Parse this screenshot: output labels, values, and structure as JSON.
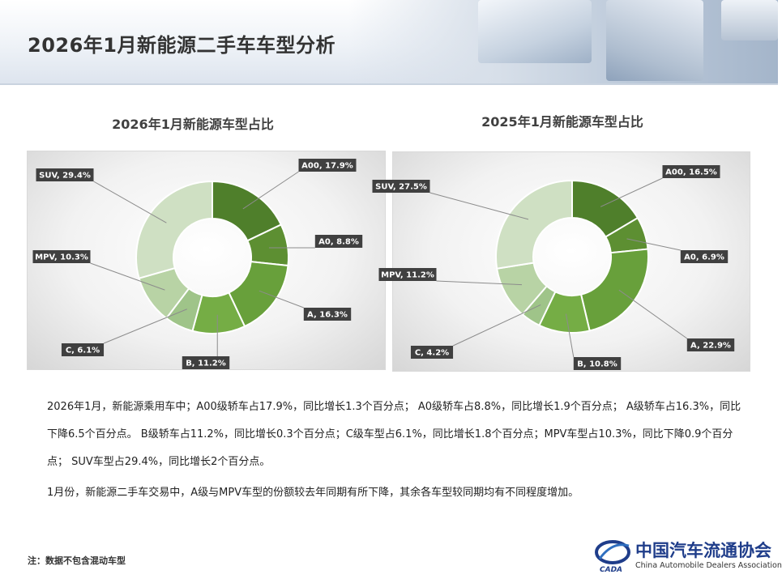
{
  "page_title": "2026年1月新能源二手车车型分析",
  "colors": {
    "A00": "#4f7f2b",
    "A0": "#5d8f32",
    "A": "#68a03b",
    "B": "#75ad45",
    "C": "#9fc489",
    "MPV": "#b8d3a5",
    "SUV": "#cfe0c3",
    "label_bg": "#404040"
  },
  "chart_data": [
    {
      "type": "pie",
      "donut": true,
      "title": "2026年1月新能源车型占比",
      "categories": [
        "A00",
        "A0",
        "A",
        "B",
        "C",
        "MPV",
        "SUV"
      ],
      "values": [
        17.9,
        8.8,
        16.3,
        11.2,
        6.1,
        10.3,
        29.4
      ],
      "labels": [
        "A00, 17.9%",
        "A0, 8.8%",
        "A, 16.3%",
        "B, 11.2%",
        "C, 6.1%",
        "MPV, 10.3%",
        "SUV, 29.4%"
      ]
    },
    {
      "type": "pie",
      "donut": true,
      "title": "2025年1月新能源车型占比",
      "categories": [
        "A00",
        "A0",
        "A",
        "B",
        "C",
        "MPV",
        "SUV"
      ],
      "values": [
        16.5,
        6.9,
        22.9,
        10.8,
        4.2,
        11.2,
        27.5
      ],
      "labels": [
        "A00, 16.5%",
        "A0, 6.9%",
        "A, 22.9%",
        "B, 10.8%",
        "C, 4.2%",
        "MPV, 11.2%",
        "SUV, 27.5%"
      ]
    }
  ],
  "description": {
    "paragraph1": "2026年1月，新能源乘用车中；A00级轿车占17.9%，同比增长1.3个百分点； A0级轿车占8.8%，同比增长1.9个百分点； A级轿车占16.3%，同比下降6.5个百分点。 B级轿车占11.2%，同比增长0.3个百分点；C级车型占6.1%，同比增长1.8个百分点；MPV车型占10.3%，同比下降0.9个百分点； SUV车型占29.4%，同比增长2个百分点。",
    "paragraph2": "1月份，新能源二手车交易中，A级与MPV车型的份额较去年同期有所下降，其余各车型较同期均有不同程度增加。"
  },
  "footnote": "注：数据不包含混动车型",
  "logo": {
    "name_cn": "中国汽车流通协会",
    "name_en": "China Automobile Dealers Association",
    "abbr": "CADA"
  }
}
